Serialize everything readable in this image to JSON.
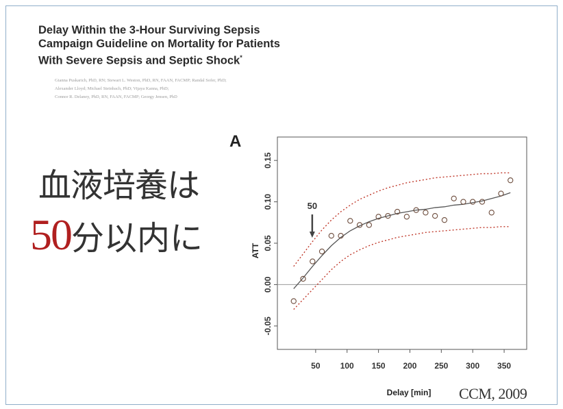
{
  "slide": {
    "paper_title_lines": [
      "Delay Within the 3-Hour Surviving Sepsis",
      "Campaign Guideline on Mortality for Patients",
      "With Severe Sepsis and Septic Shock"
    ],
    "paper_title_mark": "*",
    "author_lines": [
      "Gianna Puskarich, PhD, RN; Stewart L. Weston, PhD, RN, FAAN, FACMP; Randal Sofer, PhD;",
      "Alexander Lloyd; Michael Steinbach, PhD; Vijaya Kanna, PhD;",
      "Connor R. Delaney, PhD, RN, FAAN, FACMP; Georgy Jensen, PhD"
    ],
    "jp_line1": "血液培養は",
    "jp_line2_number": "50",
    "jp_line2_rest": "分以内に",
    "panel_letter": "A",
    "citation": "CCM, 2009",
    "colors": {
      "highlight_red": "#b01f1f",
      "ci_line": "#c0392b",
      "fit_line": "#555555",
      "points": "#6b4a3a",
      "frame": "#8faec9"
    }
  },
  "chart_data": {
    "type": "scatter",
    "title": "",
    "xlabel": "Delay [min]",
    "ylabel": "ATT",
    "xlim": [
      0,
      375
    ],
    "ylim": [
      -0.07,
      0.17
    ],
    "xticks": [
      50,
      100,
      150,
      200,
      250,
      300,
      350
    ],
    "yticks": [
      -0.05,
      0.0,
      0.05,
      0.1,
      0.15
    ],
    "ytick_labels": [
      "-0.05",
      "0.00",
      "0.05",
      "0.10",
      "0.15"
    ],
    "reference_line_y": 0.0,
    "annotation": {
      "text": "50",
      "x": 50,
      "arrow": "down"
    },
    "grid": false,
    "points": [
      {
        "x": 15,
        "y": -0.02
      },
      {
        "x": 30,
        "y": 0.007
      },
      {
        "x": 45,
        "y": 0.028
      },
      {
        "x": 60,
        "y": 0.04
      },
      {
        "x": 75,
        "y": 0.059
      },
      {
        "x": 90,
        "y": 0.059
      },
      {
        "x": 105,
        "y": 0.077
      },
      {
        "x": 120,
        "y": 0.072
      },
      {
        "x": 135,
        "y": 0.072
      },
      {
        "x": 150,
        "y": 0.082
      },
      {
        "x": 165,
        "y": 0.083
      },
      {
        "x": 180,
        "y": 0.088
      },
      {
        "x": 195,
        "y": 0.082
      },
      {
        "x": 210,
        "y": 0.09
      },
      {
        "x": 225,
        "y": 0.087
      },
      {
        "x": 240,
        "y": 0.083
      },
      {
        "x": 255,
        "y": 0.078
      },
      {
        "x": 270,
        "y": 0.104
      },
      {
        "x": 285,
        "y": 0.1
      },
      {
        "x": 300,
        "y": 0.1
      },
      {
        "x": 315,
        "y": 0.1
      },
      {
        "x": 330,
        "y": 0.087
      },
      {
        "x": 345,
        "y": 0.11
      },
      {
        "x": 360,
        "y": 0.126
      }
    ],
    "fit_curve": {
      "x": [
        15,
        30,
        45,
        60,
        75,
        90,
        105,
        120,
        135,
        150,
        165,
        180,
        195,
        210,
        225,
        240,
        255,
        270,
        285,
        300,
        315,
        330,
        345,
        360
      ],
      "y": [
        -0.005,
        0.008,
        0.022,
        0.035,
        0.047,
        0.057,
        0.065,
        0.071,
        0.076,
        0.08,
        0.083,
        0.086,
        0.088,
        0.09,
        0.091,
        0.093,
        0.094,
        0.096,
        0.097,
        0.099,
        0.101,
        0.104,
        0.107,
        0.111
      ]
    },
    "ci_upper": {
      "x": [
        15,
        30,
        45,
        60,
        75,
        90,
        105,
        120,
        135,
        150,
        165,
        180,
        195,
        210,
        225,
        240,
        255,
        270,
        285,
        300,
        315,
        330,
        345,
        360
      ],
      "y": [
        0.022,
        0.037,
        0.052,
        0.066,
        0.078,
        0.088,
        0.096,
        0.103,
        0.108,
        0.113,
        0.117,
        0.12,
        0.123,
        0.125,
        0.127,
        0.129,
        0.13,
        0.131,
        0.132,
        0.133,
        0.134,
        0.134,
        0.135,
        0.135
      ]
    },
    "ci_lower": {
      "x": [
        15,
        30,
        45,
        60,
        75,
        90,
        105,
        120,
        135,
        150,
        165,
        180,
        195,
        210,
        225,
        240,
        255,
        270,
        285,
        300,
        315,
        330,
        345,
        360
      ],
      "y": [
        -0.03,
        -0.018,
        -0.006,
        0.006,
        0.018,
        0.028,
        0.036,
        0.042,
        0.047,
        0.051,
        0.054,
        0.057,
        0.059,
        0.061,
        0.063,
        0.064,
        0.065,
        0.066,
        0.067,
        0.068,
        0.069,
        0.069,
        0.07,
        0.07
      ]
    }
  }
}
